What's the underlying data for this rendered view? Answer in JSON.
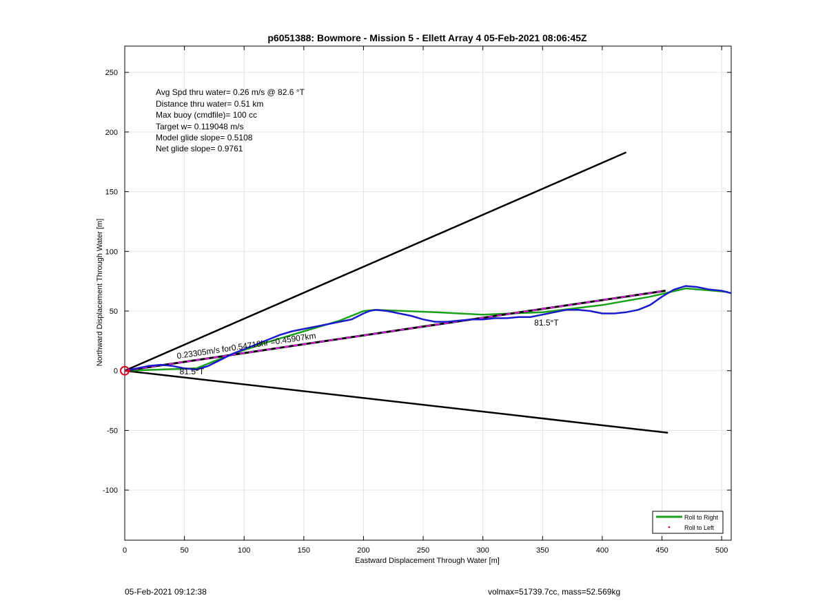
{
  "chart_data": {
    "type": "line",
    "title": "p6051388: Bowmore - Mission 5 - Ellett Array 4 05-Feb-2021 08:06:45Z",
    "xlabel": "Eastward Displacement Through Water [m]",
    "ylabel": "Northward Displacement Through Water [m]",
    "xlim": [
      0,
      508
    ],
    "ylim": [
      -142,
      272
    ],
    "xticks": [
      0,
      50,
      100,
      150,
      200,
      250,
      300,
      350,
      400,
      450,
      500
    ],
    "yticks": [
      -100,
      -50,
      0,
      50,
      100,
      150,
      200,
      250
    ],
    "grid": true,
    "legend_position": "bottom-right",
    "info_text": [
      "Avg Spd thru water=  0.26 m/s @  82.6 °T",
      "Distance thru water=  0.51 km",
      "Max buoy (cmdfile)= 100 cc",
      "Target w= 0.119048 m/s",
      "Model glide slope= 0.5108",
      "Net glide slope= 0.9761"
    ],
    "annotations": [
      {
        "text": "0.23305m/s for0.54718hr =0.45907km",
        "x": 44,
        "y": 10,
        "angle_deg": 81.5
      },
      {
        "text": "81.5°T",
        "x": 46,
        "y": -3
      },
      {
        "text": "81.5°T",
        "x": 343,
        "y": 38
      }
    ],
    "series": [
      {
        "name": "Roll to Right",
        "color": "#1aa01a",
        "style": "solid",
        "x": [
          0,
          30,
          60,
          90,
          120,
          150,
          180,
          200,
          210,
          260,
          300,
          350,
          400,
          440,
          470,
          505
        ],
        "y": [
          0,
          1,
          2,
          14,
          24,
          33,
          42,
          50,
          51,
          49,
          47,
          49,
          55,
          62,
          69,
          66
        ]
      },
      {
        "name": "Roll to Left",
        "color": "#e0001a",
        "style": "dots",
        "x": [
          0,
          2,
          4
        ],
        "y": [
          0,
          0,
          0
        ]
      },
      {
        "name": "",
        "color": "#1a1acc",
        "style": "solid",
        "x": [
          0,
          10,
          20,
          30,
          40,
          50,
          60,
          70,
          80,
          90,
          100,
          110,
          120,
          130,
          140,
          150,
          160,
          170,
          180,
          190,
          200,
          205,
          210,
          220,
          230,
          240,
          250,
          260,
          270,
          280,
          290,
          300,
          310,
          320,
          330,
          340,
          350,
          360,
          370,
          380,
          390,
          400,
          410,
          420,
          430,
          440,
          450,
          460,
          470,
          480,
          490,
          500,
          508
        ],
        "y": [
          0,
          2,
          4,
          5,
          4,
          2,
          1,
          4,
          9,
          14,
          18,
          22,
          26,
          30,
          33,
          35,
          37,
          39,
          41,
          43,
          48,
          50,
          51,
          50,
          48,
          46,
          43,
          41,
          41,
          42,
          43,
          43,
          44,
          44,
          45,
          45,
          47,
          49,
          51,
          51,
          50,
          48,
          48,
          49,
          51,
          55,
          62,
          68,
          71,
          70,
          68,
          67,
          65
        ]
      },
      {
        "name": "",
        "color": "#000000",
        "style": "dashed-magenta",
        "x": [
          0,
          453
        ],
        "y": [
          0,
          67
        ]
      },
      {
        "name": "",
        "color": "#000000",
        "style": "solid",
        "x": [
          0,
          420
        ],
        "y": [
          0,
          183
        ]
      },
      {
        "name": "",
        "color": "#000000",
        "style": "solid",
        "x": [
          0,
          455
        ],
        "y": [
          0,
          -52
        ]
      }
    ],
    "start_marker": {
      "x": 0,
      "y": 0,
      "color": "#e0001a"
    }
  },
  "footer": {
    "left": "05-Feb-2021 09:12:38",
    "right": "volmax=51739.7cc, mass=52.569kg"
  }
}
